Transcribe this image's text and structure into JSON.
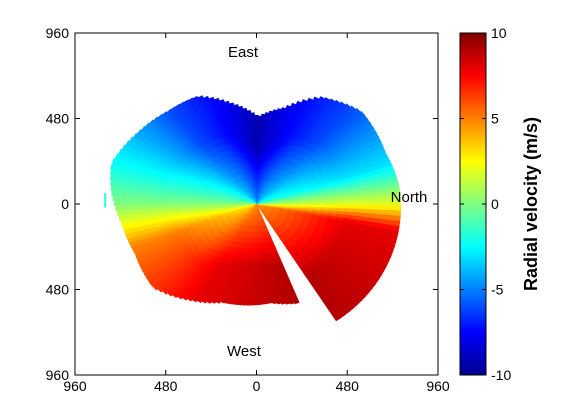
{
  "chart_data": {
    "type": "heatmap",
    "title": "",
    "x": {
      "range": [
        -960,
        960
      ],
      "ticks": [
        -960,
        -480,
        0,
        480,
        960
      ],
      "tick_labels": [
        "960",
        "480",
        "0",
        "480",
        "960"
      ]
    },
    "y": {
      "range": [
        -960,
        960
      ],
      "ticks": [
        960,
        480,
        0,
        -480,
        -960
      ],
      "tick_labels": [
        "960",
        "480",
        "0",
        "480",
        "960"
      ]
    },
    "direction_labels": {
      "top": "East",
      "bottom": "West",
      "right": "North"
    },
    "colorbar": {
      "label": "Radial velocity (m/s)",
      "range": [
        -10,
        10
      ],
      "ticks": [
        10,
        5,
        0,
        -5,
        -10
      ],
      "tick_labels": [
        "10",
        "5",
        "0",
        "-5",
        "-10"
      ],
      "colormap": "jet"
    },
    "field": {
      "description_free": true,
      "sector_boundary_polar": [
        [
          -1.0,
          780
        ],
        [
          0.14,
          760
        ],
        [
          0.4,
          740
        ],
        [
          0.75,
          760
        ],
        [
          1.05,
          690
        ],
        [
          1.3,
          560
        ],
        [
          1.55,
          490
        ],
        [
          1.8,
          580
        ],
        [
          2.05,
          680
        ],
        [
          2.3,
          700
        ],
        [
          2.55,
          740
        ],
        [
          2.85,
          800
        ],
        [
          3.05,
          770
        ],
        [
          3.3,
          720
        ],
        [
          3.55,
          700
        ],
        [
          3.85,
          720
        ],
        [
          4.15,
          640
        ],
        [
          4.4,
          580
        ],
        [
          4.85,
          560
        ],
        [
          5.1,
          600
        ]
      ],
      "value_by_bearing": [
        [
          -1.0,
          9
        ],
        [
          -0.2,
          8
        ],
        [
          0.0,
          2
        ],
        [
          0.3,
          -3
        ],
        [
          0.8,
          -6
        ],
        [
          1.57,
          -9
        ],
        [
          2.3,
          -6
        ],
        [
          2.9,
          -2
        ],
        [
          3.14,
          0
        ],
        [
          3.5,
          5
        ],
        [
          4.2,
          8
        ],
        [
          5.1,
          9
        ]
      ]
    }
  }
}
